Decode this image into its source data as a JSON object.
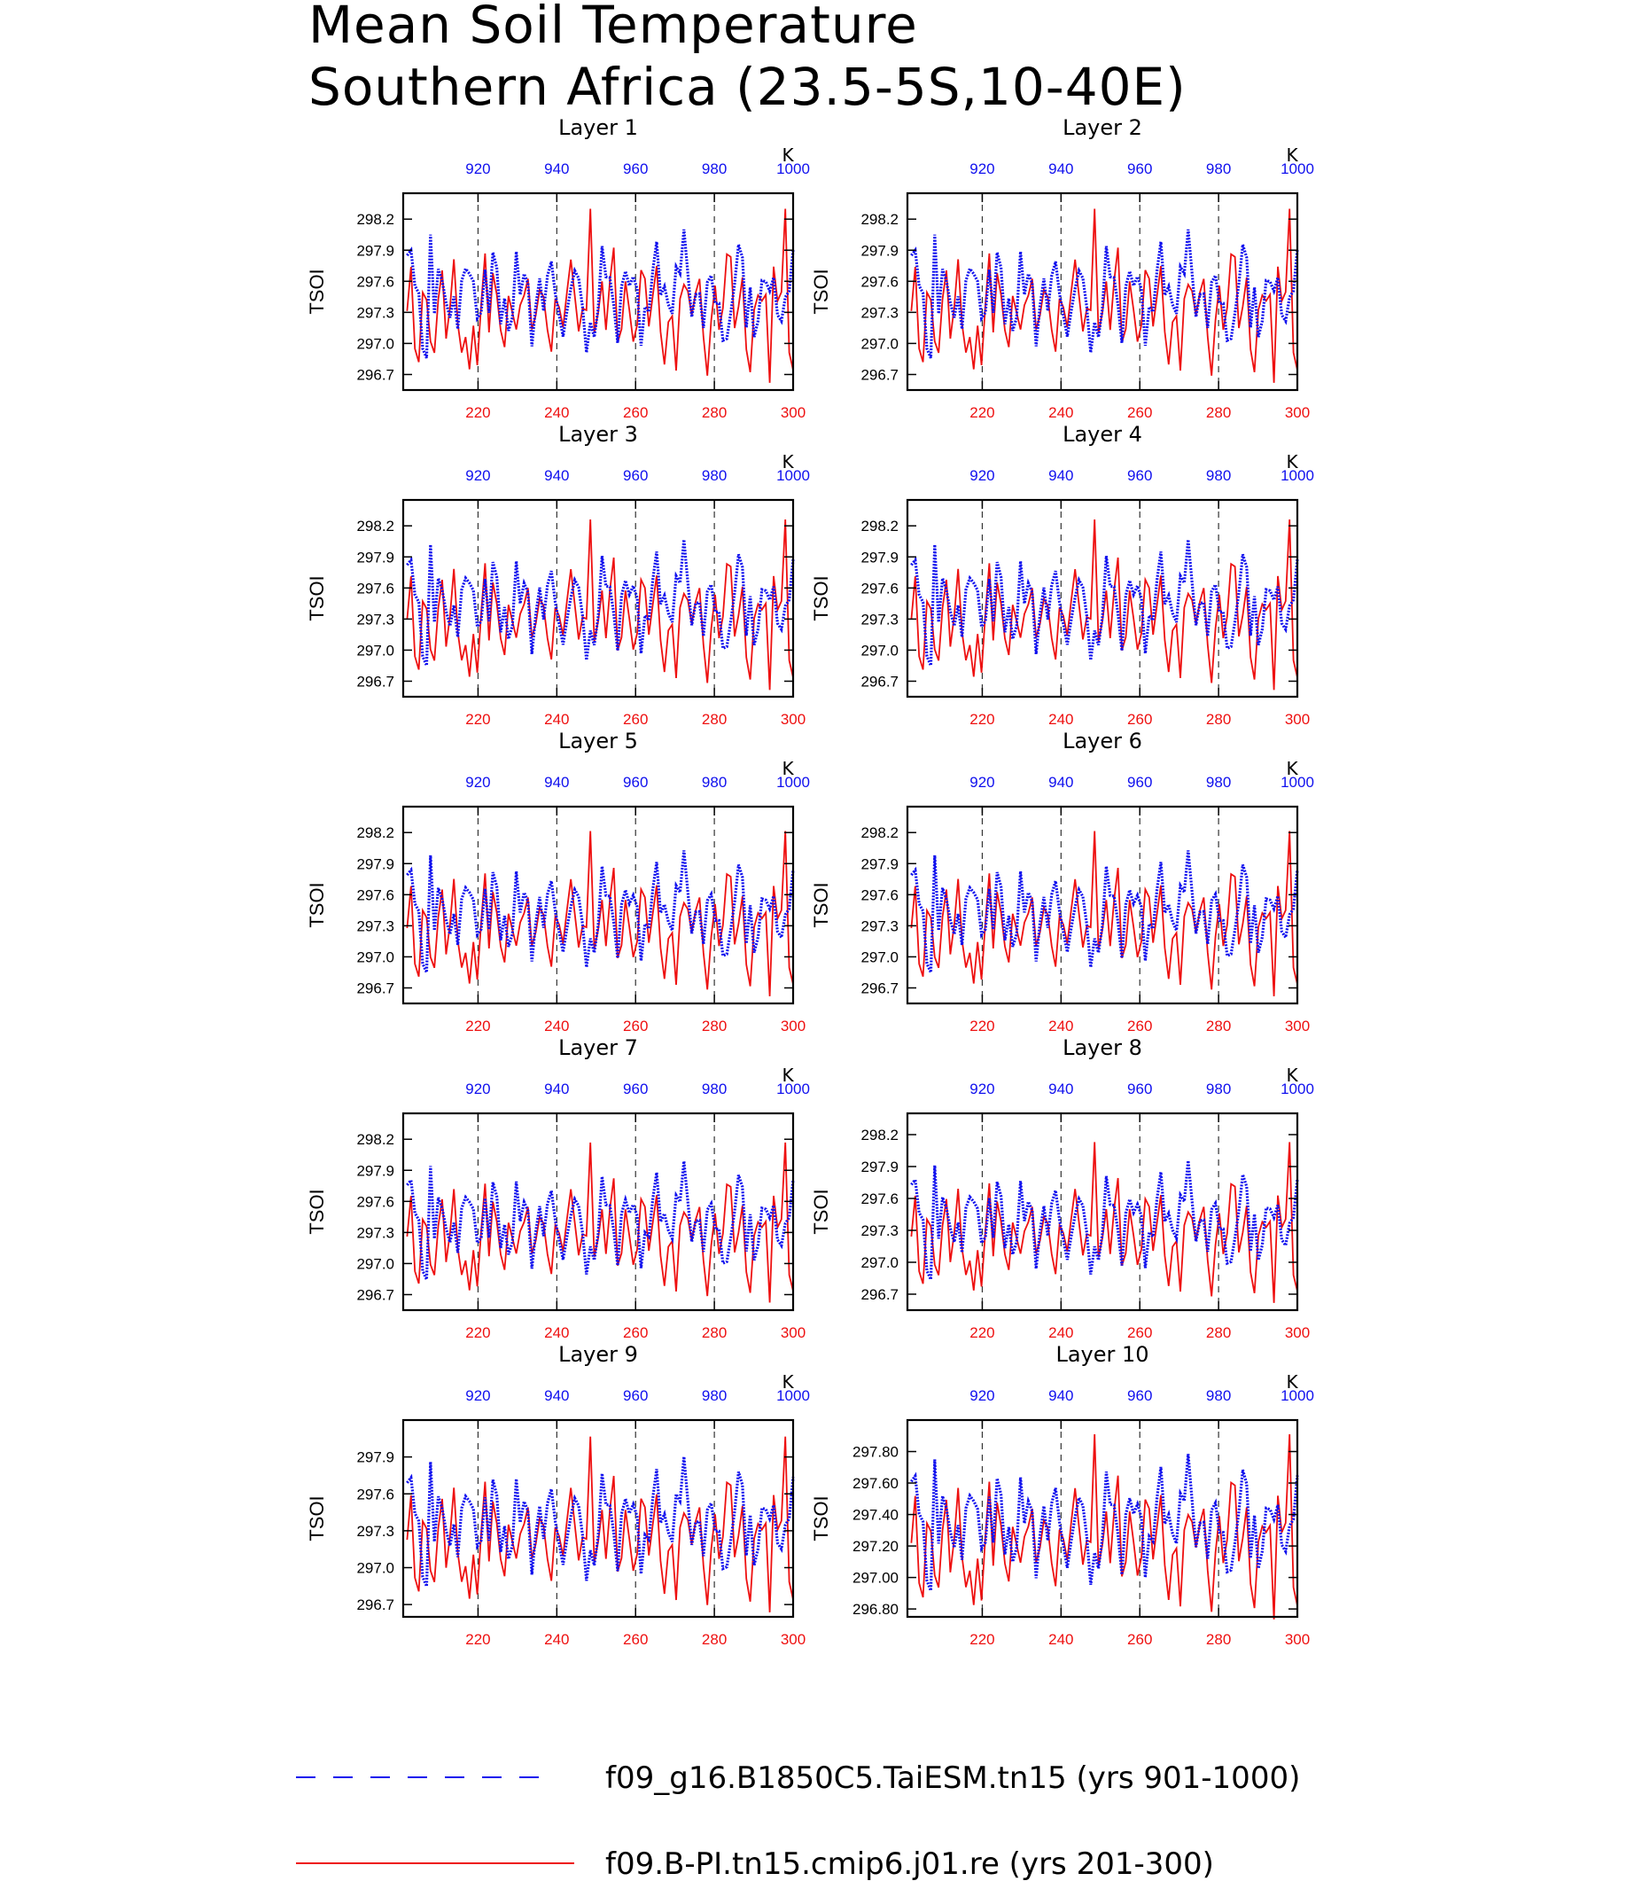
{
  "title_line1": "Mean Soil Temperature",
  "title_line2": "Southern Africa (23.5-5S,10-40E)",
  "colors": {
    "series_a": "#1010ee",
    "series_b": "#ee1010",
    "axis": "#000000"
  },
  "chart_data": {
    "type": "line",
    "ylabel": "TSOI",
    "top_axis_unit_label": "K",
    "bottom_x_ticks": [
      "220",
      "240",
      "260",
      "280",
      "300"
    ],
    "top_x_ticks": [
      "920",
      "940",
      "960",
      "980",
      "1000"
    ],
    "bottom_xlim": [
      201,
      300
    ],
    "top_xlim": [
      901,
      1000
    ],
    "grid": "vertical dashed lines at x ticks",
    "legend": [
      {
        "name": "f09_g16.B1850C5.TaiESM.tn15 (yrs 901-1000)",
        "style": "blue dashed"
      },
      {
        "name": "f09.B-PI.tn15.cmip6.j01.re (yrs 201-300)",
        "style": "red solid"
      }
    ],
    "panels": [
      {
        "title": "Layer 1",
        "yticks": [
          "298.2",
          "297.9",
          "297.6",
          "297.3",
          "297.0",
          "296.7"
        ],
        "ylim": [
          296.55,
          298.45
        ],
        "offset": 0.0,
        "amp": 1.0
      },
      {
        "title": "Layer 2",
        "yticks": [
          "298.2",
          "297.9",
          "297.6",
          "297.3",
          "297.0",
          "296.7"
        ],
        "ylim": [
          296.55,
          298.45
        ],
        "offset": 0.0,
        "amp": 1.0
      },
      {
        "title": "Layer 3",
        "yticks": [
          "298.2",
          "297.9",
          "297.6",
          "297.3",
          "297.0",
          "296.7"
        ],
        "ylim": [
          296.55,
          298.45
        ],
        "offset": -0.02,
        "amp": 0.98
      },
      {
        "title": "Layer 4",
        "yticks": [
          "298.2",
          "297.9",
          "297.6",
          "297.3",
          "297.0",
          "296.7"
        ],
        "ylim": [
          296.55,
          298.45
        ],
        "offset": -0.02,
        "amp": 0.98
      },
      {
        "title": "Layer 5",
        "yticks": [
          "298.2",
          "297.9",
          "297.6",
          "297.3",
          "297.0",
          "296.7"
        ],
        "ylim": [
          296.55,
          298.45
        ],
        "offset": -0.04,
        "amp": 0.95
      },
      {
        "title": "Layer 6",
        "yticks": [
          "298.2",
          "297.9",
          "297.6",
          "297.3",
          "297.0",
          "296.7"
        ],
        "ylim": [
          296.55,
          298.45
        ],
        "offset": -0.04,
        "amp": 0.95
      },
      {
        "title": "Layer 7",
        "yticks": [
          "298.2",
          "297.9",
          "297.6",
          "297.3",
          "297.0",
          "296.7"
        ],
        "ylim": [
          296.55,
          298.45
        ],
        "offset": -0.06,
        "amp": 0.92
      },
      {
        "title": "Layer 8",
        "yticks": [
          "298.2",
          "297.9",
          "297.6",
          "297.3",
          "297.0",
          "296.7"
        ],
        "ylim": [
          296.55,
          298.4
        ],
        "offset": -0.08,
        "amp": 0.9
      },
      {
        "title": "Layer 9",
        "yticks": [
          "297.9",
          "297.6",
          "297.3",
          "297.0",
          "296.7"
        ],
        "ylim": [
          296.6,
          298.2
        ],
        "offset": -0.1,
        "amp": 0.85
      },
      {
        "title": "Layer 10",
        "yticks": [
          "297.80",
          "297.60",
          "297.40",
          "297.20",
          "297.00",
          "296.80"
        ],
        "ylim": [
          296.75,
          298.0
        ],
        "offset": -0.12,
        "amp": 0.7
      }
    ]
  }
}
